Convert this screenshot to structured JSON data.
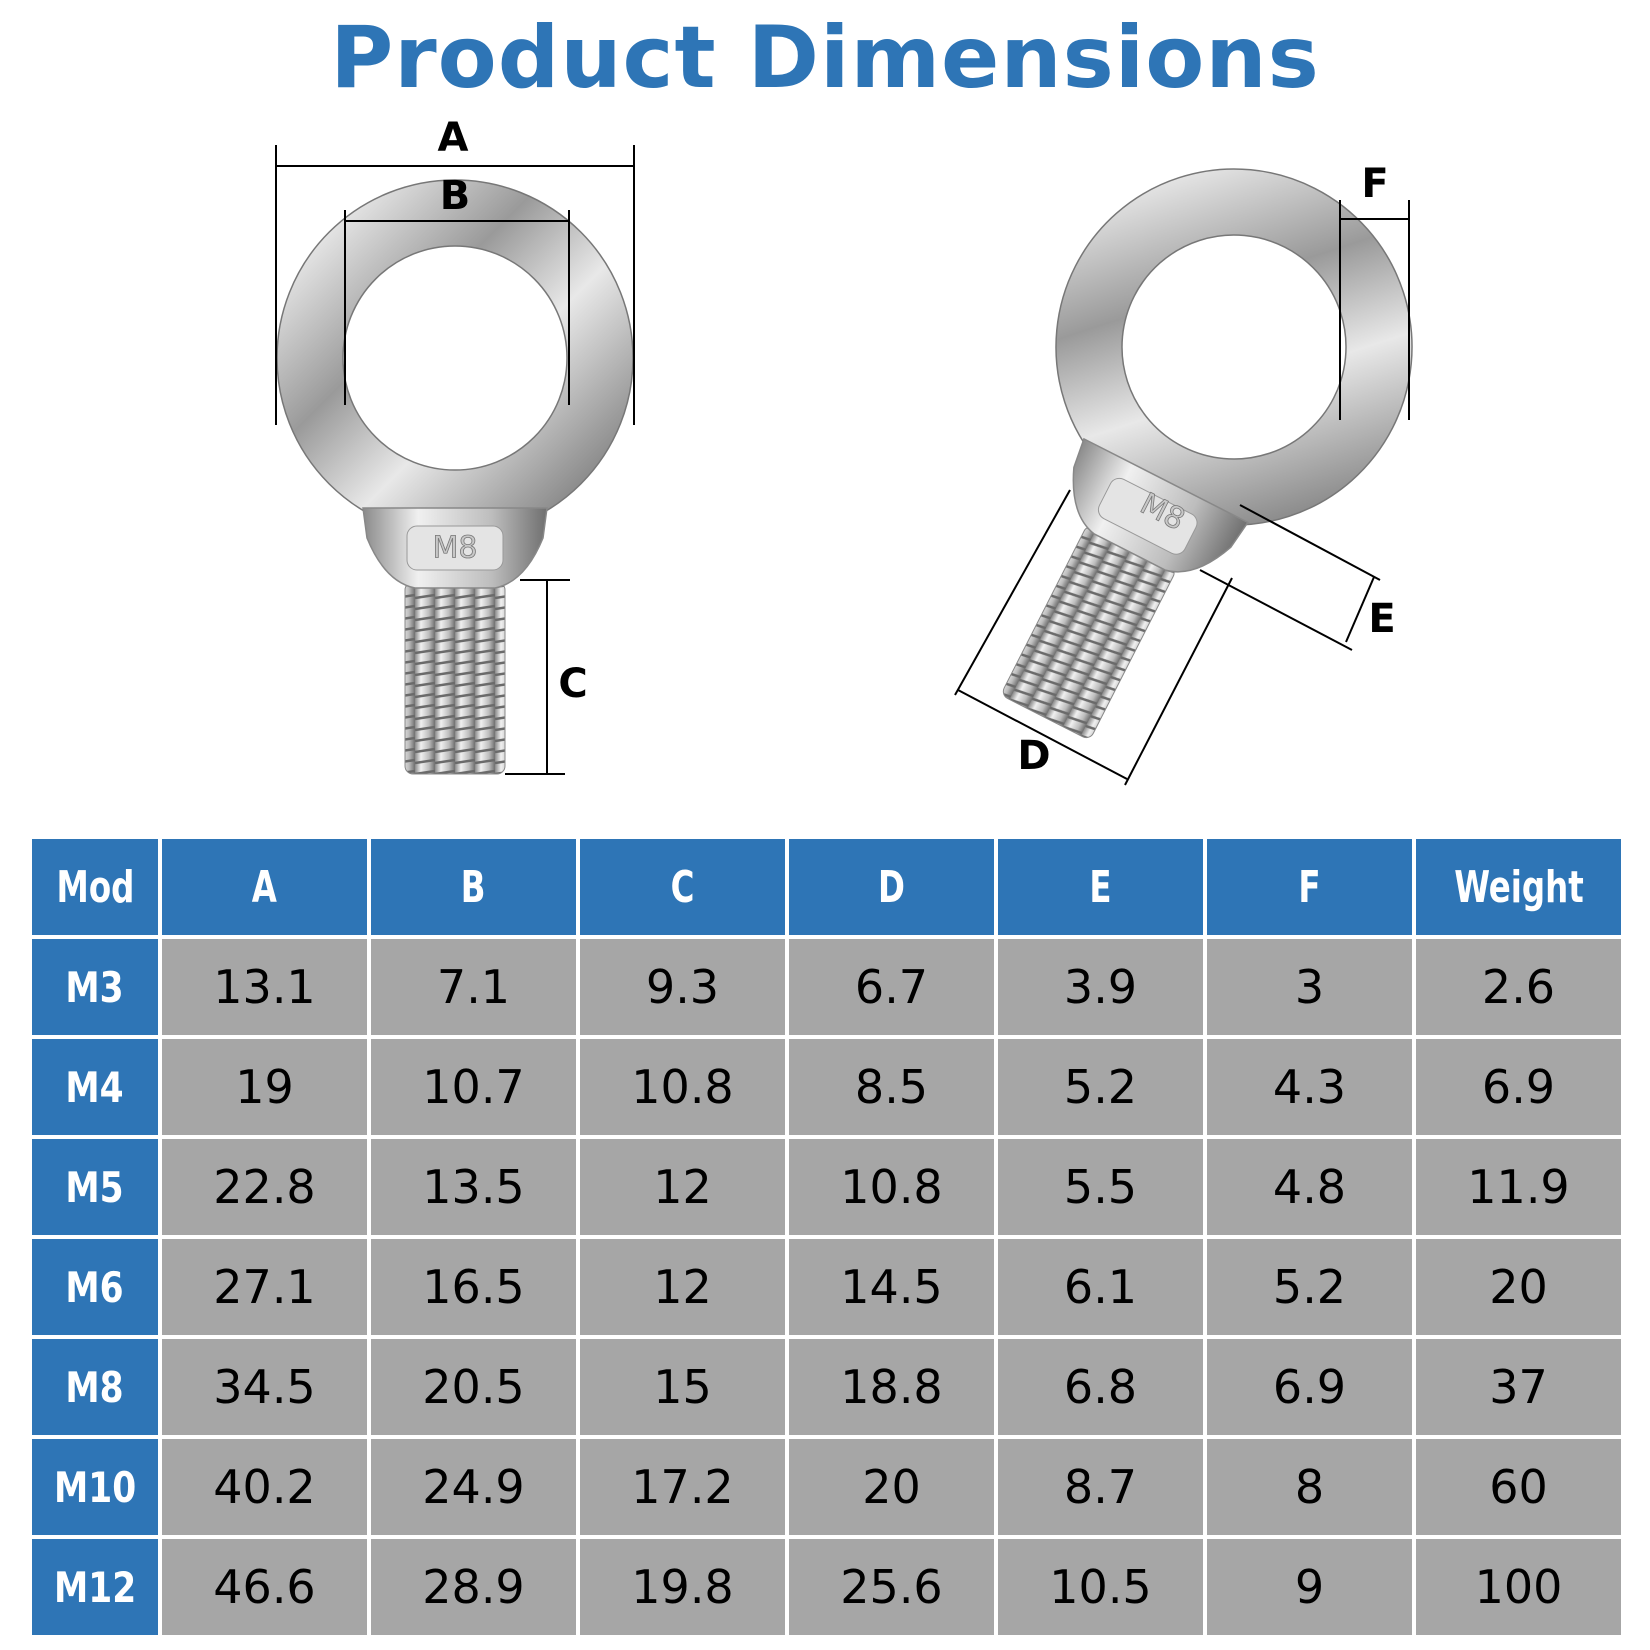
{
  "header": {
    "title": "Product Dimensions"
  },
  "diagram": {
    "labels": {
      "A": "A",
      "B": "B",
      "C": "C",
      "D": "D",
      "E": "E",
      "F": "F"
    },
    "left_stamp": "M8",
    "right_stamp": "M8"
  },
  "table": {
    "columns": [
      "Mod",
      "A",
      "B",
      "C",
      "D",
      "E",
      "F",
      "Weight"
    ],
    "rows": [
      [
        "M3",
        "13.1",
        "7.1",
        "9.3",
        "6.7",
        "3.9",
        "3",
        "2.6"
      ],
      [
        "M4",
        "19",
        "10.7",
        "10.8",
        "8.5",
        "5.2",
        "4.3",
        "6.9"
      ],
      [
        "M5",
        "22.8",
        "13.5",
        "12",
        "10.8",
        "5.5",
        "4.8",
        "11.9"
      ],
      [
        "M6",
        "27.1",
        "16.5",
        "12",
        "14.5",
        "6.1",
        "5.2",
        "20"
      ],
      [
        "M8",
        "34.5",
        "20.5",
        "15",
        "18.8",
        "6.8",
        "6.9",
        "37"
      ],
      [
        "M10",
        "40.2",
        "24.9",
        "17.2",
        "20",
        "8.7",
        "8",
        "60"
      ],
      [
        "M12",
        "46.6",
        "28.9",
        "19.8",
        "25.6",
        "10.5",
        "9",
        "100"
      ]
    ]
  }
}
